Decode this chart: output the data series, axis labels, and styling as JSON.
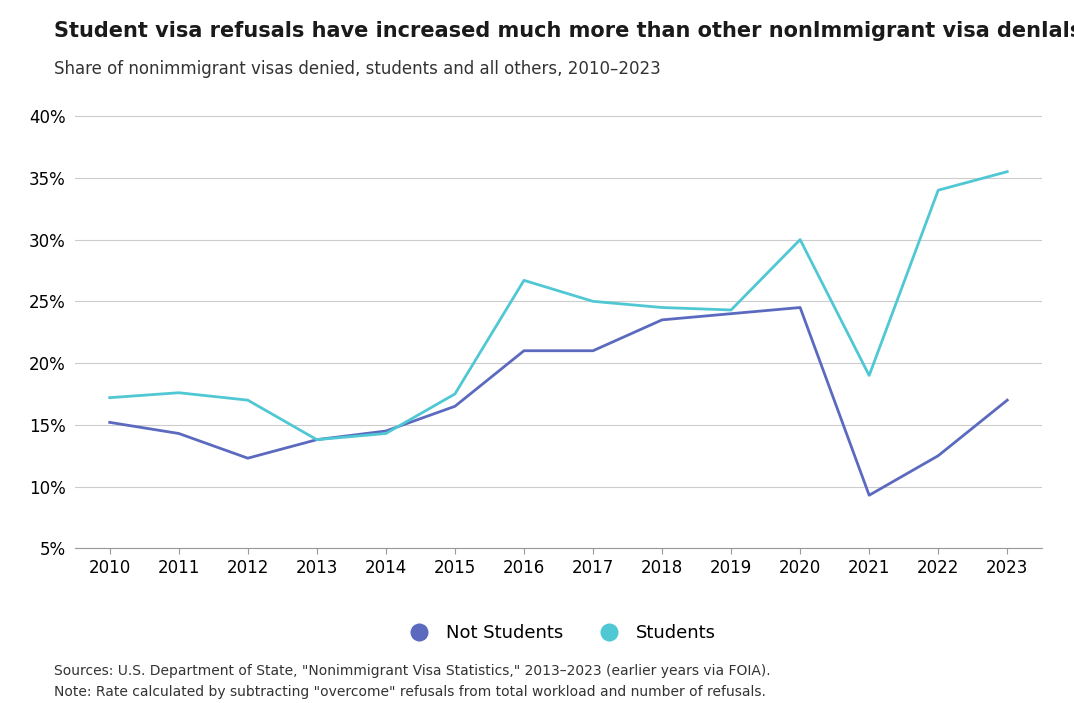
{
  "title": "Student visa refusals have increased much more than other nonImmigrant visa denIals",
  "subtitle": "Share of nonimmigrant visas denied, students and all others, 2010–2023",
  "years": [
    2010,
    2011,
    2012,
    2013,
    2014,
    2015,
    2016,
    2017,
    2018,
    2019,
    2020,
    2021,
    2022,
    2023
  ],
  "not_students": [
    15.2,
    14.3,
    12.3,
    13.8,
    14.5,
    16.5,
    21.0,
    21.0,
    23.5,
    24.0,
    24.5,
    9.3,
    12.5,
    17.0
  ],
  "students": [
    17.2,
    17.6,
    17.0,
    13.8,
    14.3,
    17.5,
    26.7,
    25.0,
    24.5,
    24.3,
    30.0,
    19.0,
    34.0,
    35.5
  ],
  "not_students_color": "#5b6abf",
  "students_color": "#4fc8d4",
  "background_color": "#ffffff",
  "ylim": [
    5,
    42
  ],
  "yticks": [
    5,
    10,
    15,
    20,
    25,
    30,
    35,
    40
  ],
  "ytick_labels": [
    "5%",
    "10%",
    "15%",
    "20%",
    "25%",
    "30%",
    "35%",
    "40%"
  ],
  "source_text": "Sources: U.S. Department of State, \"Nonimmigrant Visa Statistics,\" 2013–2023 (earlier years via FOIA).",
  "note_text": "Note: Rate calculated by subtracting \"overcome\" refusals from total workload and number of refusals.",
  "legend_not_students": "Not Students",
  "legend_students": "Students",
  "line_width": 2.0
}
